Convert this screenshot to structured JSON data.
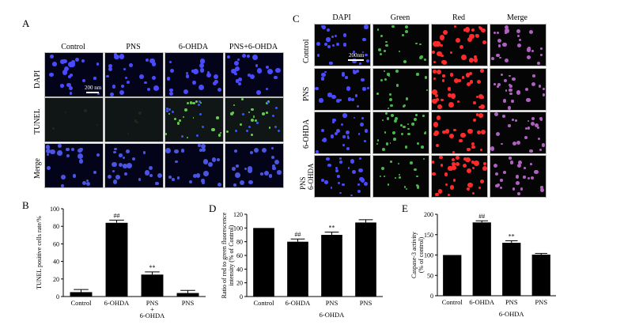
{
  "panels": {
    "A": {
      "letter": "A",
      "columns": [
        "Control",
        "PNS",
        "6-OHDA",
        "PNS+6-OHDA"
      ],
      "rows": [
        "DAPI",
        "TUNEL",
        "Merge"
      ],
      "scale_label": "200 nm"
    },
    "C": {
      "letter": "C",
      "columns": [
        "DAPI",
        "Green",
        "Red",
        "Merge"
      ],
      "rows": [
        "Control",
        "PNS",
        "6-OHDA",
        "PNS\n6-OHDA"
      ],
      "scale_label": "200nm"
    }
  },
  "chart_data": [
    {
      "id": "B",
      "letter": "B",
      "type": "bar",
      "categories": [
        "Control",
        "6-OHDA",
        "PNS\n+\n6-OHDA",
        "PNS"
      ],
      "values": [
        5,
        84,
        25,
        4
      ],
      "errors": [
        3,
        3,
        3,
        3
      ],
      "annotations": [
        "",
        "##",
        "**",
        ""
      ],
      "ylabel": "TUNEL positive cells rate/%",
      "ylim": [
        0,
        100
      ],
      "yticks": [
        0,
        20,
        40,
        60,
        80,
        100
      ],
      "xlabel": ""
    },
    {
      "id": "D",
      "letter": "D",
      "type": "bar",
      "categories": [
        "Control",
        "6-OHDA",
        "PNS",
        "PNS"
      ],
      "values": [
        100,
        80,
        90,
        108
      ],
      "errors": [
        0,
        4,
        4,
        4
      ],
      "annotations": [
        "",
        "##",
        "**",
        ""
      ],
      "ylabel": "Ratio of red to green fluorescence intensity (% of Control)",
      "ylim": [
        0,
        120
      ],
      "yticks": [
        0,
        20,
        40,
        60,
        80,
        100,
        120
      ],
      "xlabel": "6-OHDA"
    },
    {
      "id": "E",
      "letter": "E",
      "type": "bar",
      "categories": [
        "Control",
        "6-OHDA",
        "PNS",
        "PNS"
      ],
      "values": [
        100,
        180,
        130,
        101
      ],
      "errors": [
        0,
        4,
        5,
        3
      ],
      "annotations": [
        "",
        "##",
        "**",
        ""
      ],
      "ylabel": "Caspase-3 activity (% of control)",
      "ylim": [
        0,
        200
      ],
      "yticks": [
        0,
        50,
        100,
        150,
        200
      ],
      "xlabel": "6-OHDA"
    }
  ]
}
